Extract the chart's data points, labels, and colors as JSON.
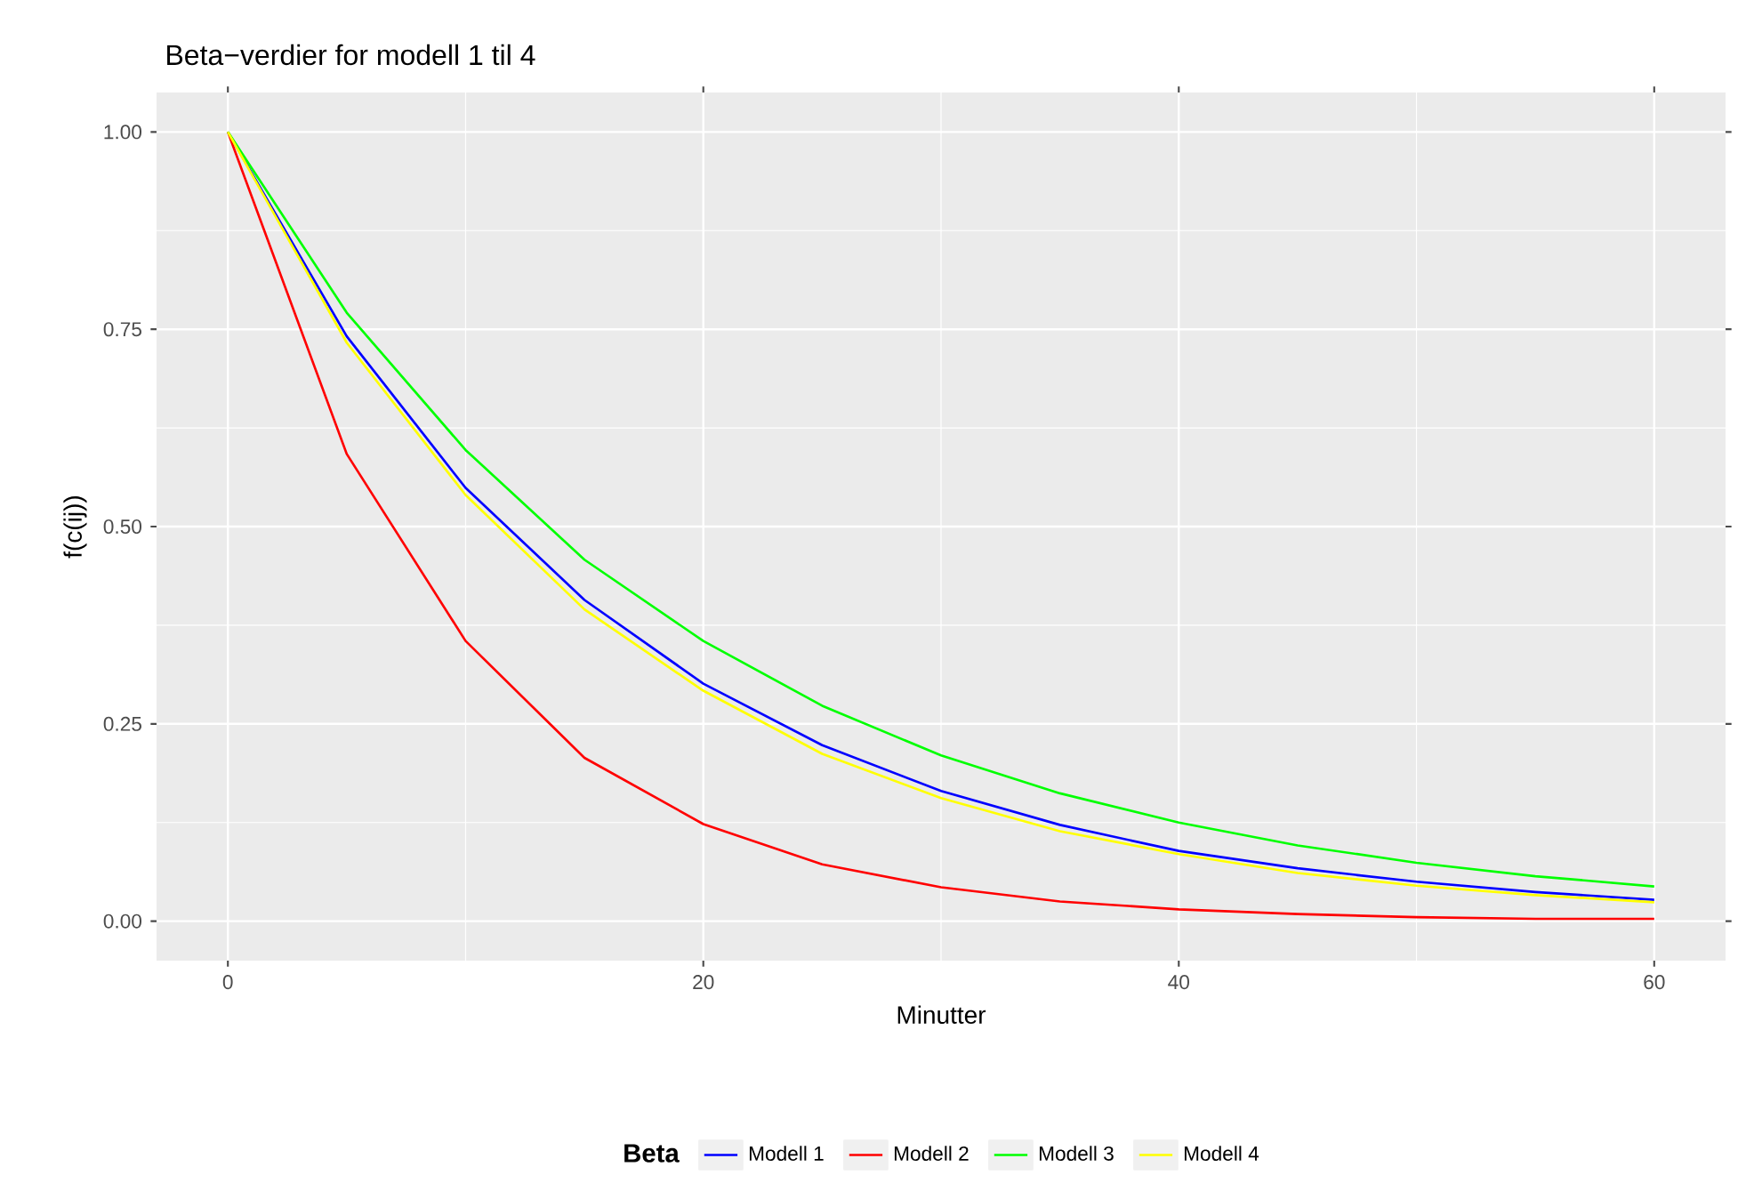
{
  "chart_data": {
    "type": "line",
    "title": "Beta−verdier for modell 1 til 4",
    "xlabel": "Minutter",
    "ylabel": "f(c(ij))",
    "legend_title": "Beta",
    "legend": "bottom",
    "grid": true,
    "xlim": [
      -3,
      63
    ],
    "xticks": [
      0,
      20,
      40,
      60
    ],
    "ylim": [
      -0.05,
      1.05
    ],
    "yticks": [
      {
        "value": 0,
        "label": "0.00"
      },
      {
        "value": 0.25,
        "label": "0.25"
      },
      {
        "value": 0.5,
        "label": "0.50"
      },
      {
        "value": 0.75,
        "label": "0.75"
      },
      {
        "value": 1,
        "label": "1.00"
      }
    ],
    "x": [
      0,
      5,
      10,
      15,
      20,
      25,
      30,
      35,
      40,
      45,
      50,
      55,
      60
    ],
    "series": [
      {
        "name": "Modell 1",
        "color": "#0000ff",
        "values": [
          1,
          0.741,
          0.549,
          0.407,
          0.301,
          0.223,
          0.165,
          0.122,
          0.089,
          0.067,
          0.05,
          0.037,
          0.027
        ]
      },
      {
        "name": "Modell 2",
        "color": "#ff0000",
        "values": [
          1,
          0.592,
          0.355,
          0.207,
          0.123,
          0.072,
          0.043,
          0.025,
          0.015,
          0.009,
          0.005,
          0.003,
          0.003
        ]
      },
      {
        "name": "Modell 3",
        "color": "#00ff00",
        "values": [
          1,
          0.771,
          0.597,
          0.458,
          0.355,
          0.273,
          0.21,
          0.162,
          0.125,
          0.096,
          0.074,
          0.057,
          0.044
        ]
      },
      {
        "name": "Modell 4",
        "color": "#ffff00",
        "values": [
          1,
          0.733,
          0.54,
          0.395,
          0.292,
          0.212,
          0.156,
          0.114,
          0.085,
          0.061,
          0.045,
          0.033,
          0.024
        ]
      }
    ]
  }
}
